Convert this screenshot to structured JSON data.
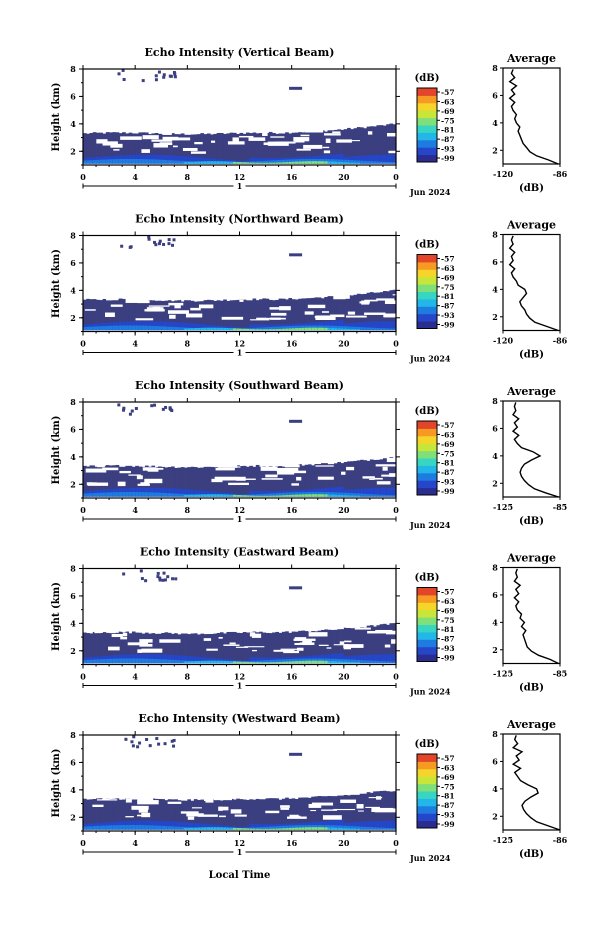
{
  "figure": {
    "xlabel": "Local Time",
    "date_label": "Jun 2024",
    "day_label": "1",
    "colorbar_unit": "(dB)",
    "colorbar_ticks": [
      "-57",
      "-63",
      "-69",
      "-75",
      "-81",
      "-87",
      "-93",
      "-99"
    ],
    "colors": {
      "background_echo": "#3b3f80",
      "scale": [
        "#2b2c8f",
        "#2546c8",
        "#1e7be0",
        "#22b7e8",
        "#36d6c2",
        "#7fe07a",
        "#c8e63a",
        "#f6d52a",
        "#f79a24",
        "#e2452a"
      ]
    }
  },
  "chart_data": [
    {
      "type": "heatmap",
      "title": "Echo Intensity (Vertical Beam)",
      "ylabel": "Height (km)",
      "xticks": [
        "0",
        "4",
        "8",
        "12",
        "16",
        "20",
        "0"
      ],
      "yticks": [
        "2",
        "4",
        "6",
        "8"
      ],
      "xlim": [
        0,
        24
      ],
      "ylim": [
        1,
        8
      ],
      "colorbar_range": [
        -99,
        -57
      ],
      "profile": {
        "title": "Average",
        "xlabel": "(dB)",
        "xticks": [
          "-120",
          "-86"
        ],
        "xlim": [
          -120,
          -86
        ],
        "yticks": [
          "2",
          "4",
          "6",
          "8"
        ],
        "ylim": [
          1,
          8
        ],
        "height": [
          1.0,
          1.3,
          1.6,
          1.9,
          2.2,
          2.5,
          2.8,
          3.1,
          3.4,
          3.7,
          4.0,
          4.3,
          4.6,
          4.9,
          5.2,
          5.5,
          5.8,
          6.1,
          6.4,
          6.7,
          7.0,
          7.3,
          7.6,
          7.9
        ],
        "value": [
          -87,
          -93,
          -100,
          -104,
          -106,
          -108,
          -109,
          -110,
          -111,
          -110,
          -112,
          -113,
          -112,
          -114,
          -115,
          -113,
          -116,
          -113,
          -115,
          -112,
          -116,
          -113,
          -115,
          -114
        ]
      }
    },
    {
      "type": "heatmap",
      "title": "Echo Intensity (Northward Beam)",
      "ylabel": "Height (km)",
      "xticks": [
        "0",
        "4",
        "8",
        "12",
        "16",
        "20",
        "0"
      ],
      "yticks": [
        "2",
        "4",
        "6",
        "8"
      ],
      "xlim": [
        0,
        24
      ],
      "ylim": [
        1,
        8
      ],
      "colorbar_range": [
        -99,
        -57
      ],
      "profile": {
        "title": "Average",
        "xlabel": "(dB)",
        "xticks": [
          "-120",
          "-86"
        ],
        "xlim": [
          -120,
          -86
        ],
        "yticks": [
          "2",
          "4",
          "6",
          "8"
        ],
        "ylim": [
          1,
          8
        ],
        "height": [
          1.0,
          1.3,
          1.6,
          1.9,
          2.2,
          2.5,
          2.8,
          3.1,
          3.4,
          3.7,
          4.0,
          4.3,
          4.6,
          4.9,
          5.2,
          5.5,
          5.8,
          6.1,
          6.4,
          6.7,
          7.0,
          7.3,
          7.6,
          7.9
        ],
        "value": [
          -87,
          -94,
          -101,
          -104,
          -106,
          -107,
          -109,
          -110,
          -108,
          -106,
          -107,
          -111,
          -112,
          -114,
          -115,
          -113,
          -116,
          -114,
          -115,
          -113,
          -116,
          -114,
          -115,
          -114
        ]
      }
    },
    {
      "type": "heatmap",
      "title": "Echo Intensity (Southward Beam)",
      "ylabel": "Height (km)",
      "xticks": [
        "0",
        "4",
        "8",
        "12",
        "16",
        "20",
        "0"
      ],
      "yticks": [
        "2",
        "4",
        "6",
        "8"
      ],
      "xlim": [
        0,
        24
      ],
      "ylim": [
        1,
        8
      ],
      "colorbar_range": [
        -99,
        -57
      ],
      "profile": {
        "title": "Average",
        "xlabel": "(dB)",
        "xticks": [
          "-125",
          "-85"
        ],
        "xlim": [
          -125,
          -85
        ],
        "yticks": [
          "2",
          "4",
          "6",
          "8"
        ],
        "ylim": [
          1,
          8
        ],
        "height": [
          1.0,
          1.3,
          1.6,
          1.9,
          2.2,
          2.5,
          2.8,
          3.1,
          3.4,
          3.7,
          4.0,
          4.3,
          4.6,
          4.9,
          5.2,
          5.5,
          5.8,
          6.1,
          6.4,
          6.7,
          7.0,
          7.3,
          7.6,
          7.9
        ],
        "value": [
          -86,
          -95,
          -103,
          -107,
          -110,
          -112,
          -113,
          -112,
          -110,
          -105,
          -99,
          -104,
          -112,
          -115,
          -117,
          -114,
          -118,
          -115,
          -117,
          -114,
          -118,
          -116,
          -117,
          -116
        ]
      }
    },
    {
      "type": "heatmap",
      "title": "Echo Intensity (Eastward Beam)",
      "ylabel": "Height (km)",
      "xticks": [
        "0",
        "4",
        "8",
        "12",
        "16",
        "20",
        "0"
      ],
      "yticks": [
        "2",
        "4",
        "6",
        "8"
      ],
      "xlim": [
        0,
        24
      ],
      "ylim": [
        1,
        8
      ],
      "colorbar_range": [
        -99,
        -57
      ],
      "profile": {
        "title": "Average",
        "xlabel": "(dB)",
        "xticks": [
          "-125",
          "-85"
        ],
        "xlim": [
          -125,
          -85
        ],
        "yticks": [
          "2",
          "4",
          "6",
          "8"
        ],
        "ylim": [
          1,
          8
        ],
        "height": [
          1.0,
          1.3,
          1.6,
          1.9,
          2.2,
          2.5,
          2.8,
          3.1,
          3.4,
          3.7,
          4.0,
          4.3,
          4.6,
          4.9,
          5.2,
          5.5,
          5.8,
          6.1,
          6.4,
          6.7,
          7.0,
          7.3,
          7.6,
          7.9
        ],
        "value": [
          -86,
          -92,
          -100,
          -105,
          -108,
          -109,
          -110,
          -111,
          -109,
          -112,
          -110,
          -113,
          -112,
          -115,
          -116,
          -114,
          -117,
          -114,
          -116,
          -113,
          -117,
          -115,
          -116,
          -115
        ]
      }
    },
    {
      "type": "heatmap",
      "title": "Echo Intensity (Westward Beam)",
      "ylabel": "Height (km)",
      "xticks": [
        "0",
        "4",
        "8",
        "12",
        "16",
        "20",
        "0"
      ],
      "yticks": [
        "2",
        "4",
        "6",
        "8"
      ],
      "xlim": [
        0,
        24
      ],
      "ylim": [
        1,
        8
      ],
      "colorbar_range": [
        -99,
        -57
      ],
      "profile": {
        "title": "Average",
        "xlabel": "(dB)",
        "xticks": [
          "-125",
          "-86"
        ],
        "xlim": [
          -125,
          -86
        ],
        "yticks": [
          "2",
          "4",
          "6",
          "8"
        ],
        "ylim": [
          1,
          8
        ],
        "height": [
          1.0,
          1.3,
          1.6,
          1.9,
          2.2,
          2.5,
          2.8,
          3.1,
          3.4,
          3.7,
          4.0,
          4.3,
          4.6,
          4.9,
          5.2,
          5.5,
          5.8,
          6.1,
          6.4,
          6.7,
          7.0,
          7.3,
          7.6,
          7.9
        ],
        "value": [
          -86,
          -94,
          -102,
          -106,
          -109,
          -111,
          -112,
          -110,
          -106,
          -101,
          -102,
          -108,
          -113,
          -115,
          -117,
          -113,
          -118,
          -114,
          -116,
          -112,
          -118,
          -115,
          -117,
          -116
        ]
      }
    }
  ]
}
